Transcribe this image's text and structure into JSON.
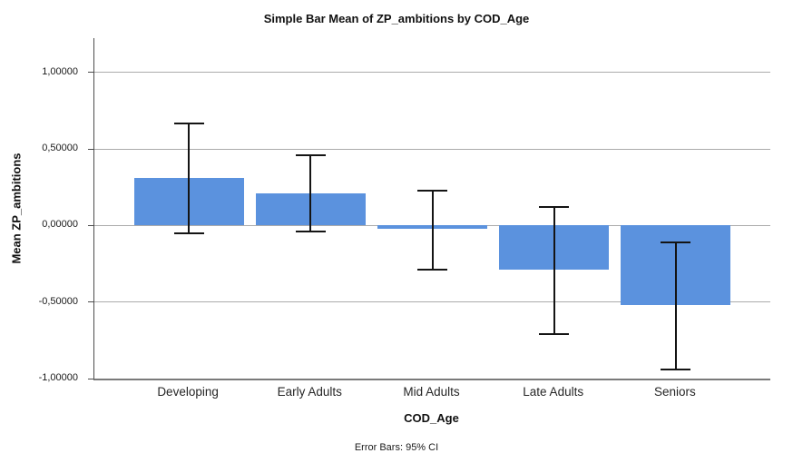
{
  "chart_data": {
    "type": "bar",
    "title": "Simple Bar Mean of ZP_ambitions by COD_Age",
    "xlabel": "COD_Age",
    "ylabel": "Mean ZP_ambitions",
    "footnote": "Error Bars: 95% CI",
    "categories": [
      "Developing",
      "Early Adults",
      "Mid Adults",
      "Late Adults",
      "Seniors"
    ],
    "values": [
      0.31,
      0.21,
      -0.02,
      -0.29,
      -0.52
    ],
    "error_bars": {
      "label": "95% CI",
      "low": [
        -0.05,
        -0.04,
        -0.29,
        -0.71,
        -0.94
      ],
      "high": [
        0.67,
        0.46,
        0.23,
        0.12,
        -0.11
      ]
    },
    "y_ticks": [
      {
        "label": "1,00000",
        "value": 1.0
      },
      {
        "label": "0,50000",
        "value": 0.5
      },
      {
        "label": "0,00000",
        "value": 0.0
      },
      {
        "label": "-0,50000",
        "value": -0.5
      },
      {
        "label": "-1,00000",
        "value": -1.0
      }
    ],
    "ylim": [
      -1.0,
      1.2255
    ],
    "legend": "none",
    "grid": "horizontal",
    "colors": {
      "bar": "#5b92de",
      "gridline": "#ababab",
      "axis": "#4d4d4d",
      "bottom_axis": "#7a7a7a",
      "error_bar": "#141414",
      "background": "#ffffff",
      "text": "#1a1a1a"
    }
  }
}
